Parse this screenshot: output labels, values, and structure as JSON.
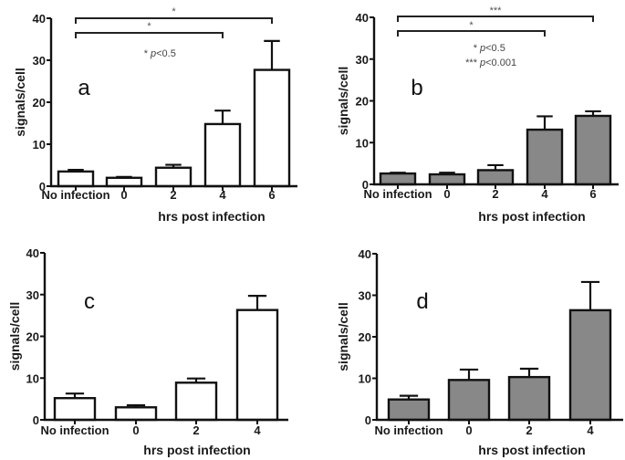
{
  "chart_data": [
    {
      "type": "bar",
      "panel": "a",
      "title": "",
      "xlabel": "hrs post infection",
      "ylabel": "signals/cell",
      "ylim": [
        0,
        40
      ],
      "yticks": [
        0,
        10,
        20,
        30,
        40
      ],
      "categories": [
        "No infection",
        "0",
        "2",
        "4",
        "6"
      ],
      "values": [
        3.5,
        2.0,
        4.4,
        14.8,
        27.7
      ],
      "error_upper": [
        3.9,
        2.2,
        5.1,
        18.0,
        34.6
      ],
      "bar_color": "#ffffff",
      "significance": [
        {
          "from": "No infection",
          "to": "6",
          "label": "*"
        },
        {
          "from": "No infection",
          "to": "4",
          "label": "*"
        }
      ],
      "annotations": [
        {
          "star": "*",
          "text": "p<0.5"
        }
      ],
      "grid": false
    },
    {
      "type": "bar",
      "panel": "b",
      "title": "",
      "xlabel": "hrs post infection",
      "ylabel": "signals/cell",
      "ylim": [
        0,
        40
      ],
      "yticks": [
        0,
        10,
        20,
        30,
        40
      ],
      "categories": [
        "No infection",
        "0",
        "2",
        "4",
        "6"
      ],
      "values": [
        2.6,
        2.4,
        3.4,
        13.1,
        16.4
      ],
      "error_upper": [
        2.8,
        2.8,
        4.6,
        16.3,
        17.5
      ],
      "bar_color": "#888888",
      "significance": [
        {
          "from": "No infection",
          "to": "6",
          "label": "***"
        },
        {
          "from": "No infection",
          "to": "4",
          "label": "*"
        }
      ],
      "annotations": [
        {
          "star": "*",
          "text": "p<0.5"
        },
        {
          "star": "***",
          "text": "p<0.001"
        }
      ],
      "grid": false
    },
    {
      "type": "bar",
      "panel": "c",
      "title": "",
      "xlabel": "hrs post infection",
      "ylabel": "signals/cell",
      "ylim": [
        0,
        40
      ],
      "yticks": [
        0,
        10,
        20,
        30,
        40
      ],
      "categories": [
        "No infection",
        "0",
        "2",
        "4"
      ],
      "values": [
        5.2,
        3.0,
        8.9,
        26.3
      ],
      "error_upper": [
        6.3,
        3.5,
        9.9,
        29.7
      ],
      "bar_color": "#ffffff",
      "significance": [],
      "annotations": [],
      "grid": false
    },
    {
      "type": "bar",
      "panel": "d",
      "title": "",
      "xlabel": "hrs post infection",
      "ylabel": "signals/cell",
      "ylim": [
        0,
        40
      ],
      "yticks": [
        0,
        10,
        20,
        30,
        40
      ],
      "categories": [
        "No infection",
        "0",
        "2",
        "4"
      ],
      "values": [
        4.9,
        9.6,
        10.3,
        26.4
      ],
      "error_upper": [
        5.8,
        12.1,
        12.3,
        33.2
      ],
      "bar_color": "#888888",
      "significance": [],
      "annotations": [],
      "grid": false
    }
  ]
}
